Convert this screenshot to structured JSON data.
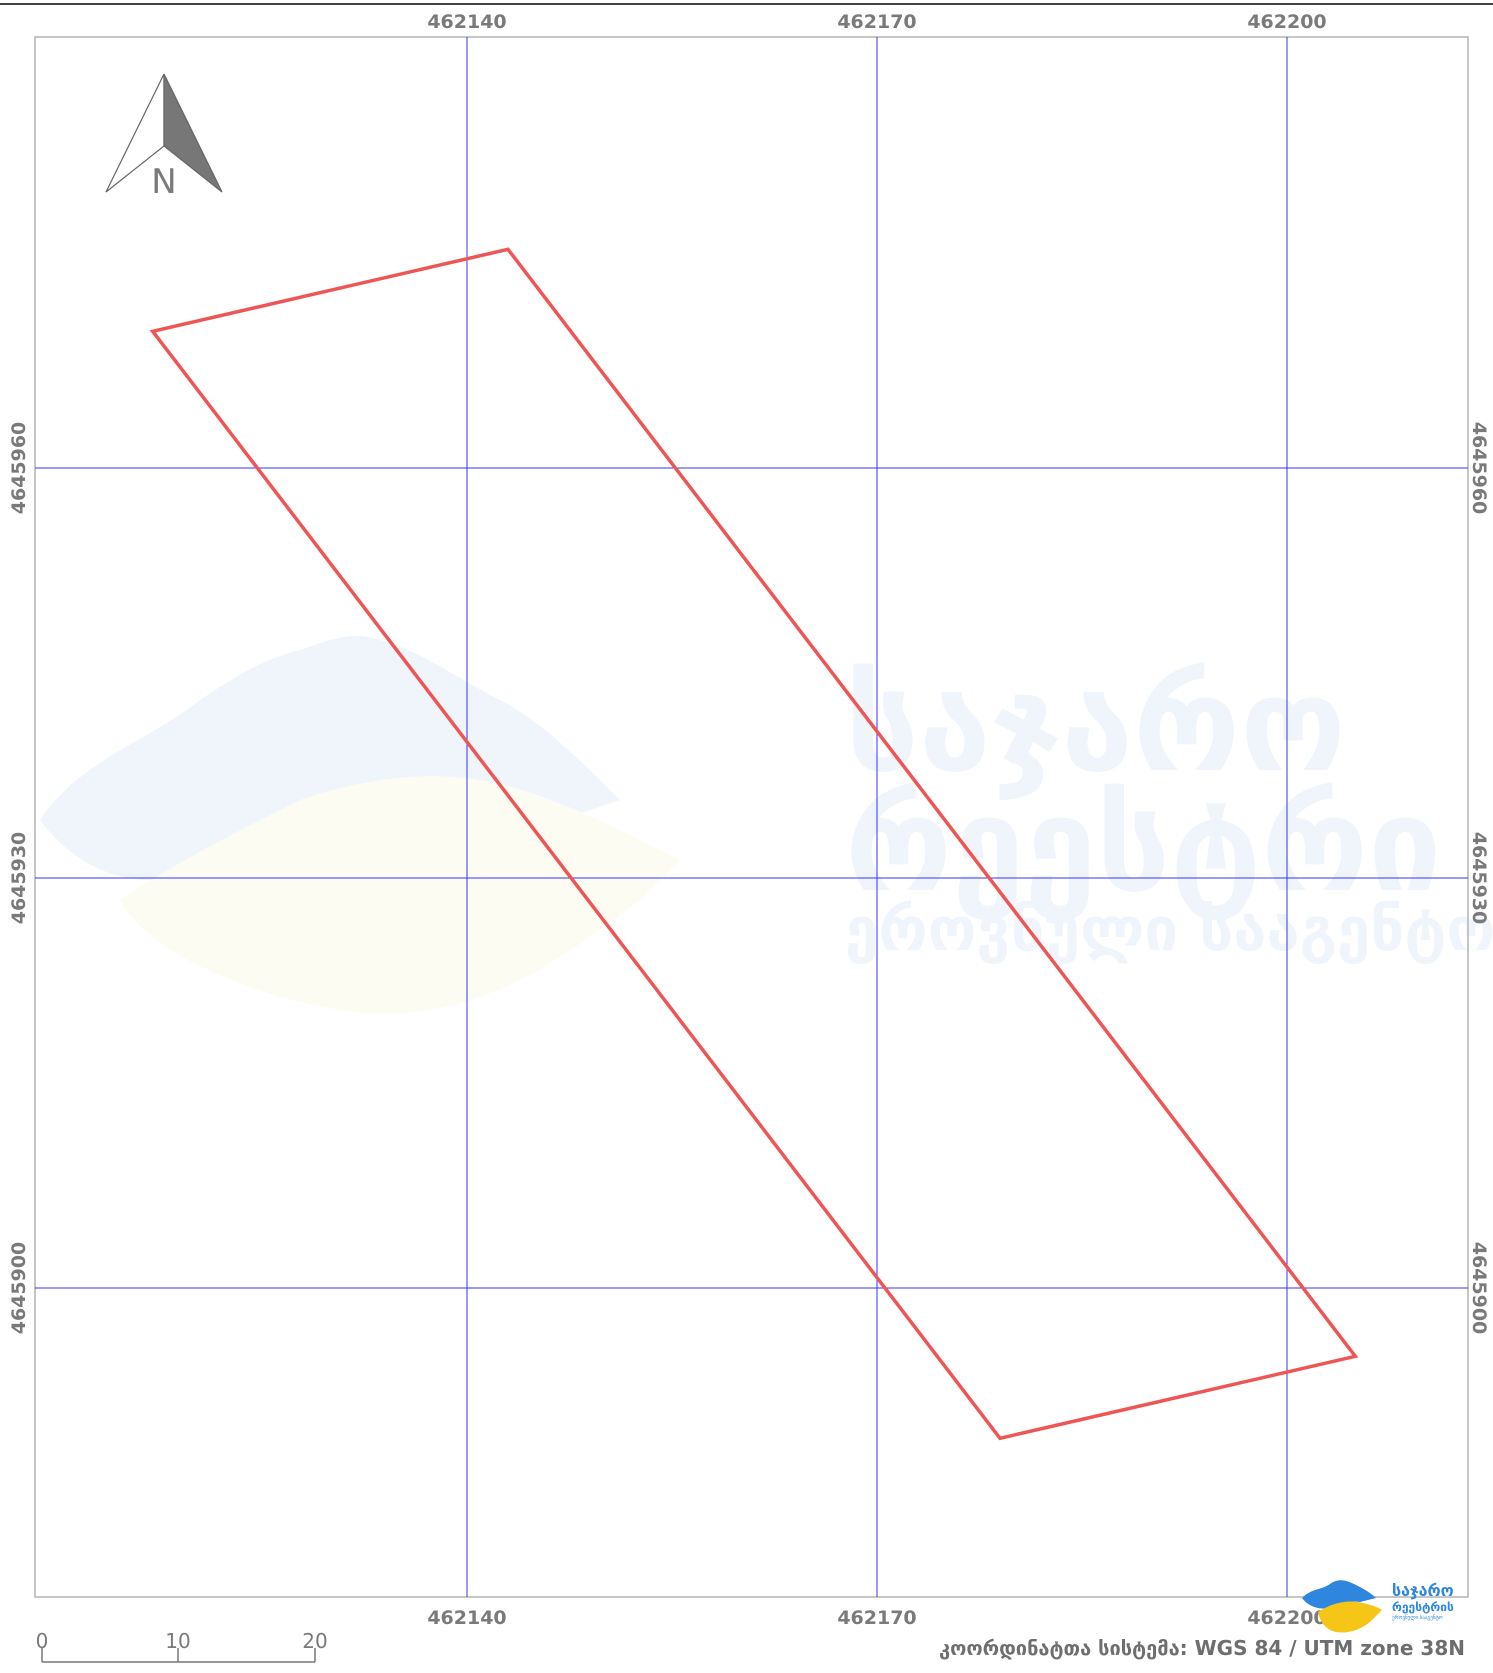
{
  "map": {
    "grid": {
      "x_values": [
        462140,
        462170,
        462200
      ],
      "y_values": [
        4645960,
        4645930,
        4645900
      ],
      "x_labels": [
        "462140",
        "462170",
        "462200"
      ],
      "y_labels": [
        "4645960",
        "4645930",
        "4645900"
      ],
      "line_color": "#3333ff"
    },
    "parcel": {
      "stroke_color": "#ee5555",
      "vertices": [
        {
          "x": 462143,
          "y": 4645976
        },
        {
          "x": 462117,
          "y": 4645970
        },
        {
          "x": 462179,
          "y": 4645889
        },
        {
          "x": 462205,
          "y": 4645895
        }
      ]
    },
    "north_arrow": {
      "label": "N",
      "icon": "north-arrow-icon"
    },
    "scale_bar": {
      "labels": [
        "0",
        "10",
        "20"
      ],
      "values": [
        0,
        10,
        20
      ],
      "unit": "m"
    },
    "crs": {
      "text": "კოორდინატთა სისტემა: WGS 84 / UTM zone 38N"
    },
    "watermark": {
      "line1": "საჯარო",
      "line2": "რეესტრი",
      "line3": "ეროვნული სააგენტო"
    },
    "logo": {
      "line1": "საჯარო",
      "line2": "რეესტრის",
      "line3": "ეროვნული სააგენტო",
      "colors": {
        "blue": "#2e86de",
        "yellow": "#f5c518"
      }
    }
  }
}
